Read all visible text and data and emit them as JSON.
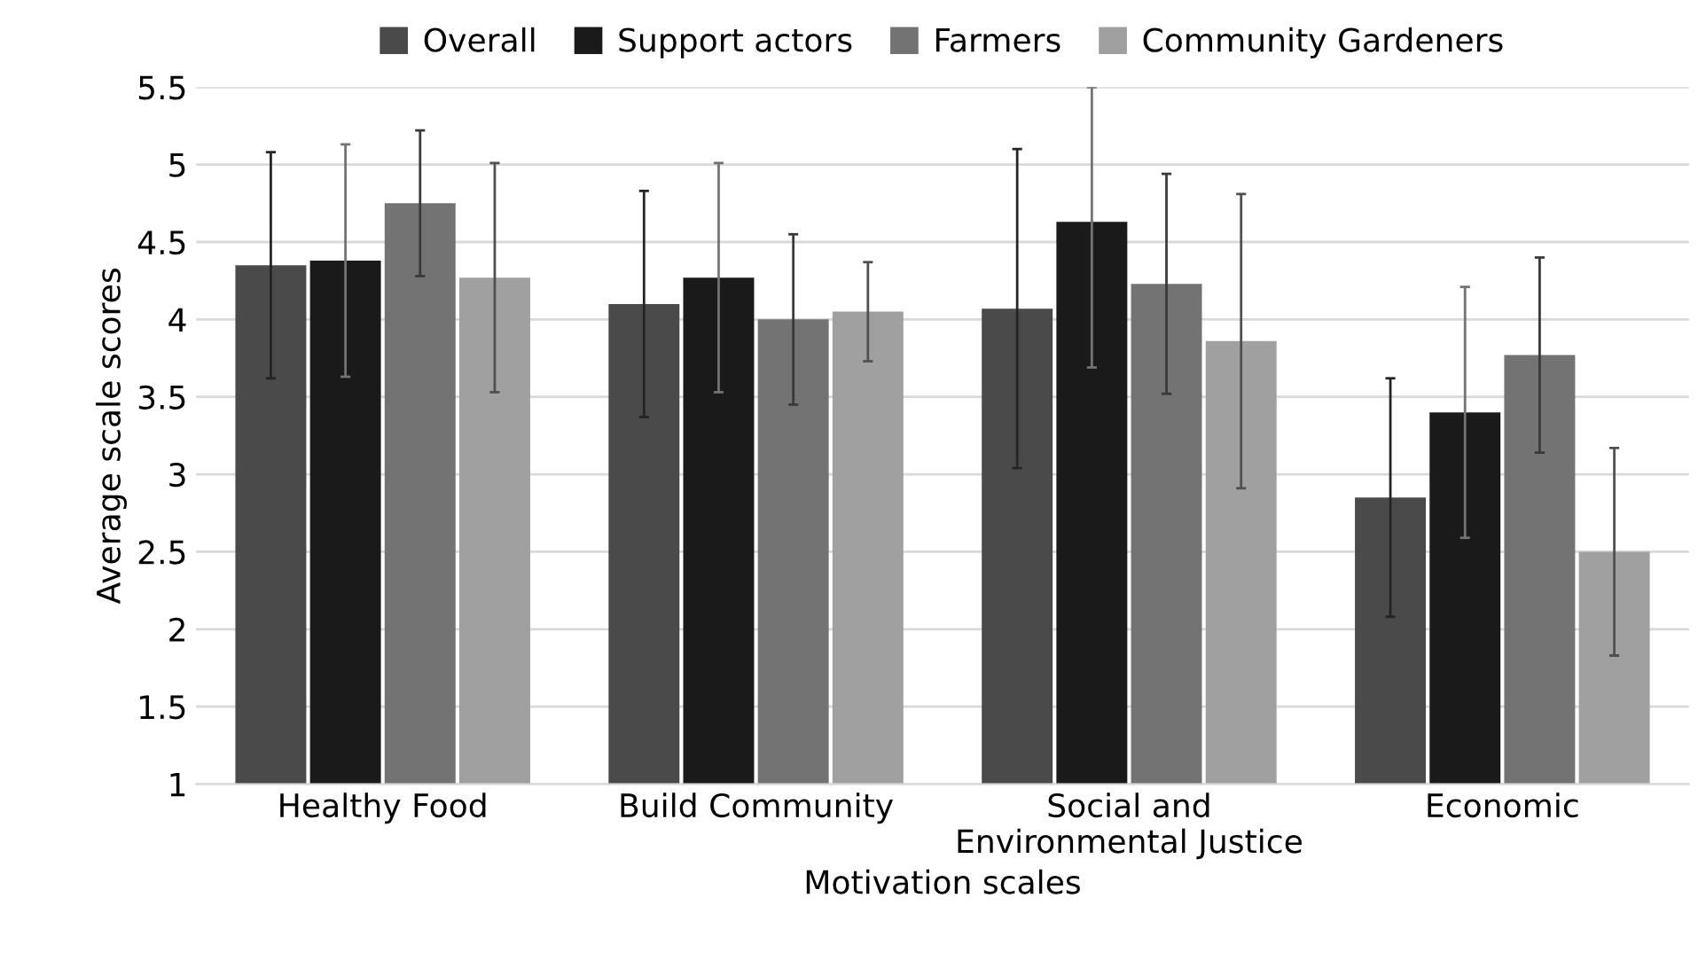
{
  "chart_data": {
    "type": "bar",
    "xlabel": "Motivation scales",
    "ylabel": "Average scale scores",
    "categories": [
      "Healthy Food",
      "Build Community",
      "Social and\nEnvironmental Justice",
      "Economic"
    ],
    "series": [
      {
        "name": "Overall",
        "color": "#4a4a4a",
        "values": [
          4.35,
          4.1,
          4.07,
          2.85
        ],
        "errors": [
          0.73,
          0.73,
          1.03,
          0.77
        ]
      },
      {
        "name": "Support actors",
        "color": "#1a1a1a",
        "values": [
          4.38,
          4.27,
          4.63,
          3.4
        ],
        "errors": [
          0.75,
          0.74,
          [
            3.69,
            5.5
          ],
          0.81
        ]
      },
      {
        "name": "Farmers",
        "color": "#737373",
        "values": [
          4.75,
          4.0,
          4.23,
          3.77
        ],
        "errors": [
          0.47,
          0.55,
          0.71,
          0.63
        ]
      },
      {
        "name": "Community Gardeners",
        "color": "#a0a0a0",
        "values": [
          4.27,
          4.05,
          3.86,
          2.5
        ],
        "errors": [
          0.74,
          0.32,
          0.95,
          0.67
        ]
      }
    ],
    "ylim": [
      1,
      5.5
    ],
    "yticks": [
      1,
      1.5,
      2,
      2.5,
      3,
      3.5,
      4,
      4.5,
      5,
      5.5
    ],
    "grid": "y",
    "legend": "top"
  }
}
